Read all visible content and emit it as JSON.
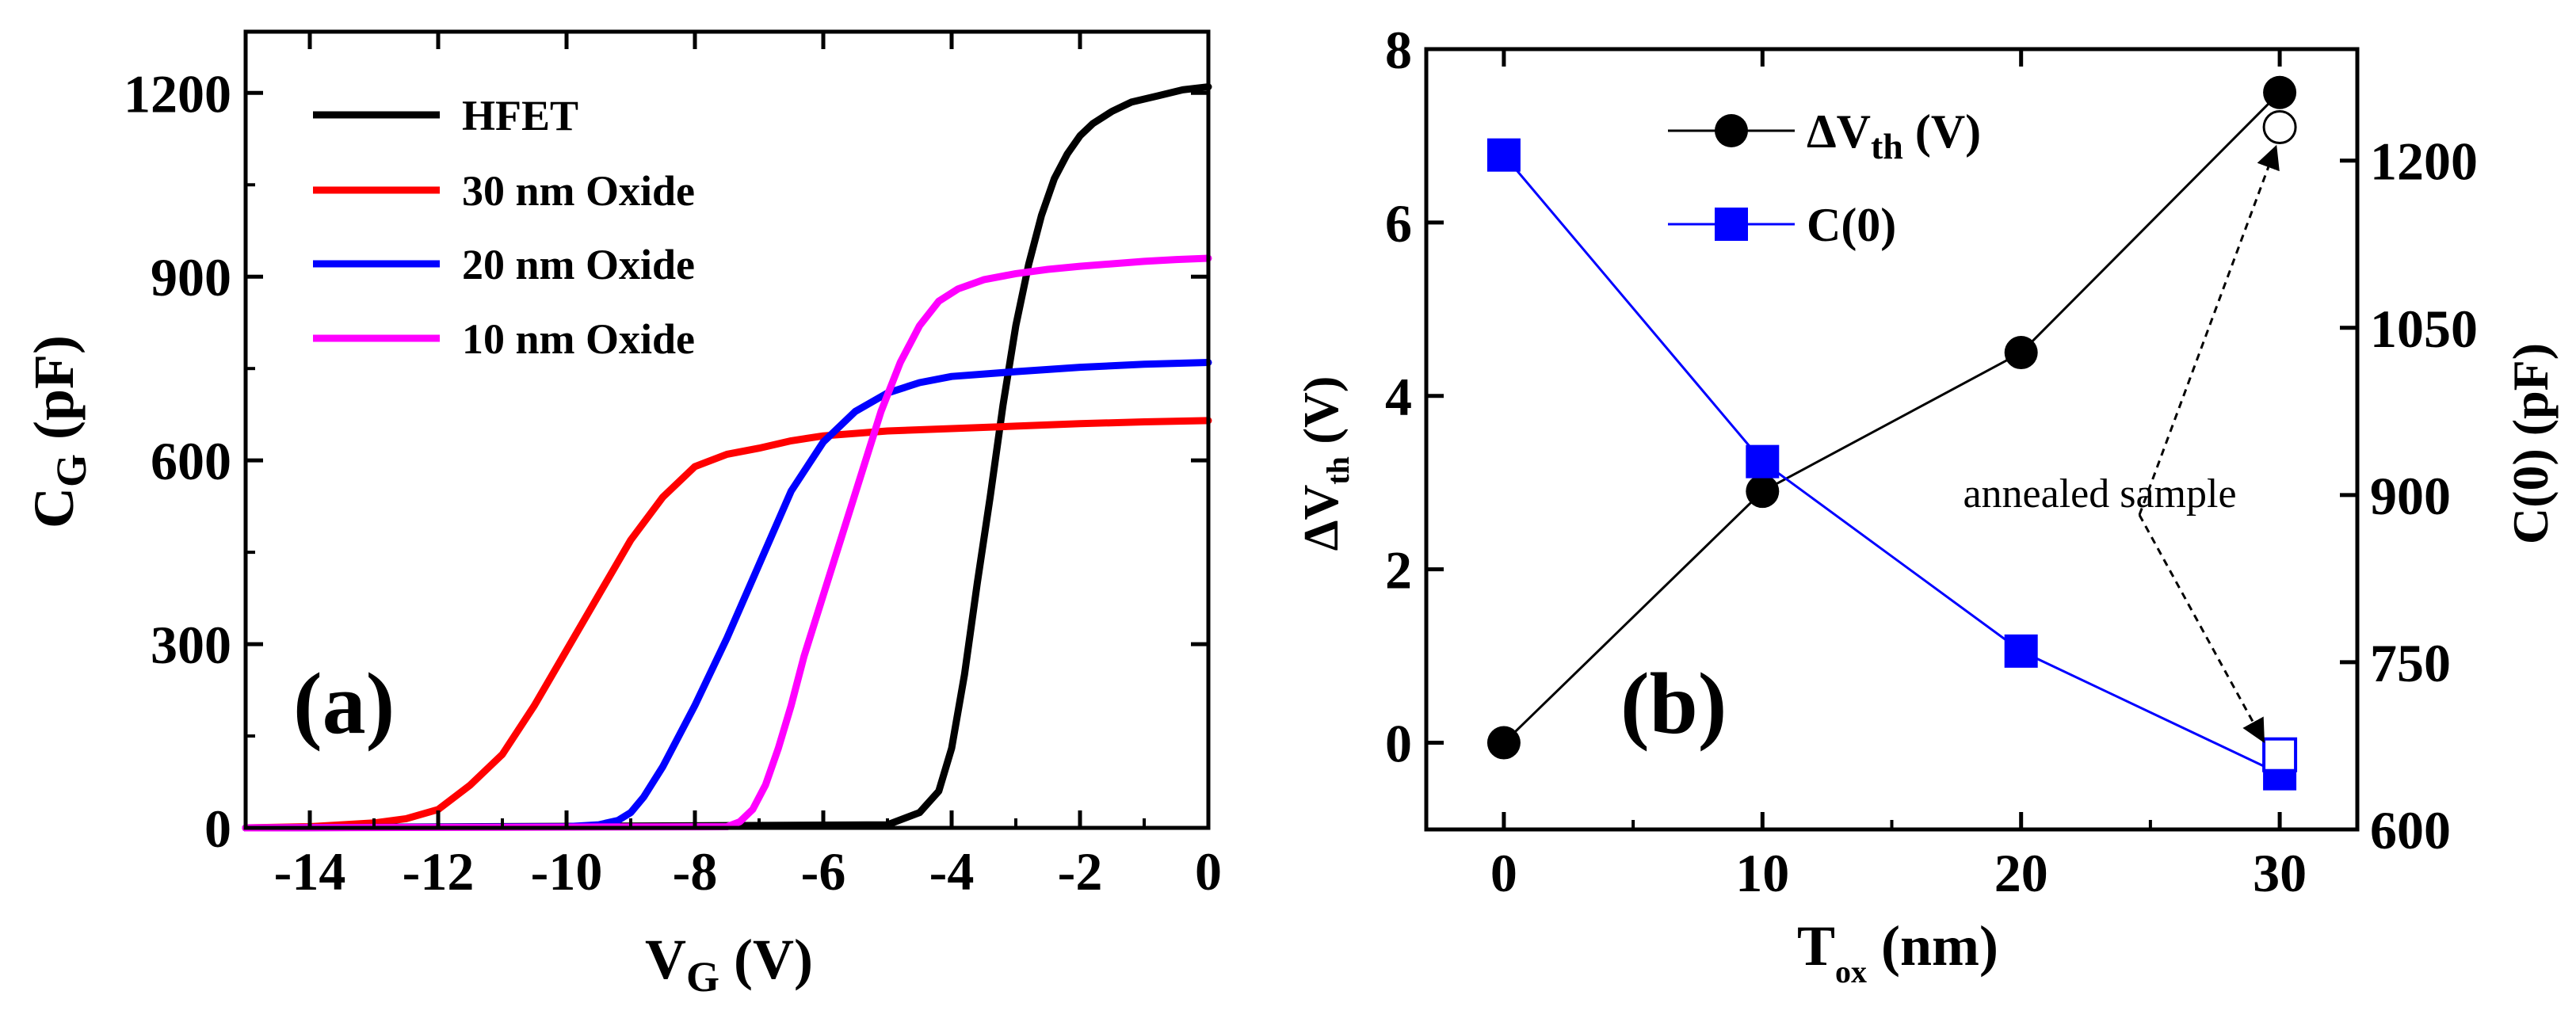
{
  "chart_data": [
    {
      "type": "line",
      "panel_label": "(a)",
      "xlabel_main": "V",
      "xlabel_sub": "G",
      "xlabel_unit": " (V)",
      "ylabel_main": "C",
      "ylabel_sub": "G",
      "ylabel_unit": " (pF)",
      "xlim": [
        -15,
        0
      ],
      "ylim": [
        0,
        1300
      ],
      "x_ticks": [
        -14,
        -12,
        -10,
        -8,
        -6,
        -4,
        -2,
        0
      ],
      "y_ticks": [
        0,
        300,
        600,
        900,
        1200
      ],
      "legend_position": "top-left",
      "series": [
        {
          "name": "HFET",
          "color": "#000000",
          "x": [
            -15,
            -5,
            -4.5,
            -4.2,
            -4.0,
            -3.8,
            -3.6,
            -3.4,
            -3.2,
            -3.0,
            -2.8,
            -2.6,
            -2.4,
            -2.2,
            -2.0,
            -1.8,
            -1.5,
            -1.2,
            -0.8,
            -0.4,
            0
          ],
          "y": [
            0,
            5,
            25,
            60,
            130,
            250,
            400,
            540,
            690,
            820,
            920,
            1000,
            1060,
            1100,
            1130,
            1150,
            1170,
            1185,
            1195,
            1205,
            1210
          ]
        },
        {
          "name": "30 nm Oxide",
          "color": "#ff0000",
          "x": [
            -15,
            -14,
            -13,
            -12.5,
            -12.0,
            -11.5,
            -11.0,
            -10.5,
            -10.0,
            -9.5,
            -9.0,
            -8.5,
            -8.0,
            -7.5,
            -7.0,
            -6.5,
            -6.0,
            -5.0,
            -4.0,
            -3.0,
            -2.0,
            -1.0,
            0
          ],
          "y": [
            0,
            2,
            8,
            15,
            30,
            70,
            120,
            200,
            290,
            380,
            470,
            540,
            590,
            610,
            620,
            632,
            640,
            648,
            652,
            656,
            660,
            663,
            665
          ]
        },
        {
          "name": "20 nm Oxide",
          "color": "#0000ff",
          "x": [
            -15,
            -10,
            -9.5,
            -9.2,
            -9.0,
            -8.8,
            -8.5,
            -8.0,
            -7.5,
            -7.0,
            -6.5,
            -6.0,
            -5.5,
            -5.0,
            -4.5,
            -4.0,
            -3.0,
            -2.0,
            -1.0,
            0
          ],
          "y": [
            0,
            2,
            5,
            12,
            25,
            50,
            100,
            200,
            310,
            430,
            550,
            630,
            680,
            710,
            727,
            737,
            745,
            752,
            757,
            760
          ]
        },
        {
          "name": "10 nm Oxide",
          "color": "#ff00ff",
          "x": [
            -15,
            -7.5,
            -7.3,
            -7.1,
            -6.9,
            -6.7,
            -6.5,
            -6.3,
            -6.0,
            -5.7,
            -5.4,
            -5.1,
            -4.8,
            -4.5,
            -4.2,
            -3.9,
            -3.5,
            -3.0,
            -2.5,
            -2.0,
            -1.5,
            -1.0,
            -0.5,
            0
          ],
          "y": [
            0,
            2,
            10,
            30,
            70,
            130,
            200,
            280,
            380,
            480,
            580,
            680,
            760,
            820,
            860,
            880,
            895,
            905,
            912,
            917,
            921,
            925,
            928,
            930
          ]
        }
      ]
    },
    {
      "type": "line",
      "panel_label": "(b)",
      "xlabel_main": "T",
      "xlabel_sub": "ox",
      "xlabel_unit": " (nm)",
      "ylabel_left_main": "ΔV",
      "ylabel_left_sub": "th",
      "ylabel_left_unit": " (V)",
      "ylabel_right": "C(0) (pF)",
      "xlim": [
        -3,
        33
      ],
      "ylim_left": [
        -1,
        8
      ],
      "ylim_right": [
        600,
        1300
      ],
      "x_ticks": [
        0,
        10,
        20,
        30
      ],
      "y_ticks_left": [
        0,
        2,
        4,
        6,
        8
      ],
      "y_ticks_right": [
        600,
        750,
        900,
        1050,
        1200
      ],
      "legend_position": "top-center",
      "series": [
        {
          "name": "ΔV",
          "name_sub": "th",
          "name_unit": " (V)",
          "axis": "left",
          "color": "#000000",
          "marker": "circle",
          "x": [
            0,
            10,
            20,
            30
          ],
          "y": [
            0,
            2.9,
            4.5,
            7.5
          ]
        },
        {
          "name": "C(0)",
          "axis": "right",
          "color": "#0000ff",
          "marker": "square",
          "x": [
            0,
            10,
            20,
            30
          ],
          "y": [
            1205,
            930,
            760,
            650
          ]
        }
      ],
      "annealed_points": [
        {
          "series": "ΔV",
          "x": 30,
          "y": 7.1,
          "marker": "open-circle",
          "color": "#000000",
          "axis": "left"
        },
        {
          "series": "C(0)",
          "x": 30,
          "y": 667,
          "marker": "open-square",
          "color": "#0000ff",
          "axis": "right"
        }
      ],
      "annotation": "annealed sample"
    }
  ]
}
